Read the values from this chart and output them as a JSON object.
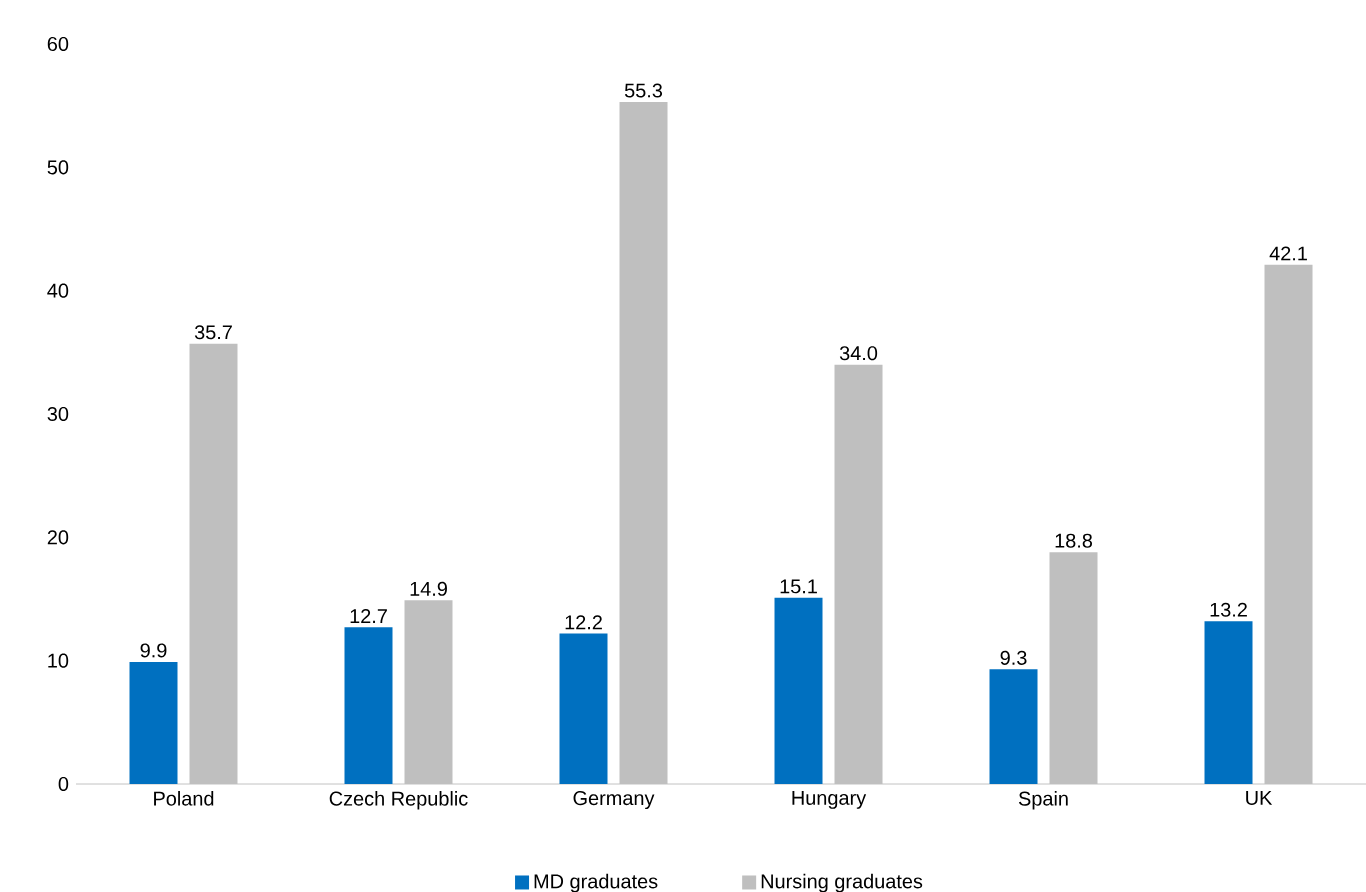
{
  "chart_data": {
    "type": "bar",
    "categories": [
      "Poland",
      "Czech Republic",
      "Germany",
      "Hungary",
      "Spain",
      "UK"
    ],
    "series": [
      {
        "name": "MD graduates",
        "color": "#0070c0",
        "values": [
          9.9,
          12.7,
          12.2,
          15.1,
          9.3,
          13.2
        ],
        "value_labels": [
          "9.9",
          "12.7",
          "12.2",
          "15.1",
          "9.3",
          "13.2"
        ]
      },
      {
        "name": "Nursing graduates",
        "color": "#bfbfbf",
        "values": [
          35.7,
          14.9,
          55.3,
          34.0,
          18.8,
          42.1
        ],
        "value_labels": [
          "35.7",
          "14.9",
          "55.3",
          "34.0",
          "18.8",
          "42.1"
        ]
      }
    ],
    "ylim": [
      0,
      60
    ],
    "yticks": [
      0,
      10,
      20,
      30,
      40,
      50,
      60
    ],
    "grid": false,
    "legend": "bottom"
  }
}
